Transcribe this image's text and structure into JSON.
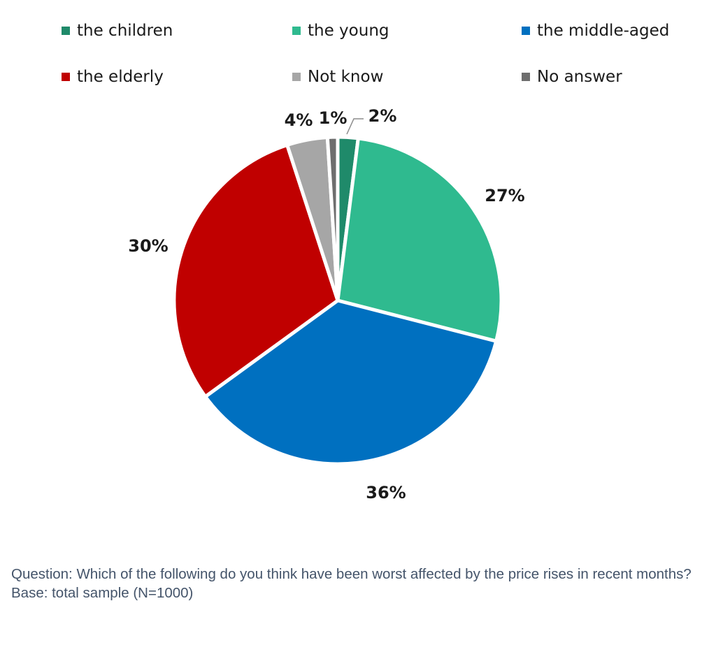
{
  "chart_data": {
    "type": "pie",
    "slices": [
      {
        "name": "the children",
        "value": 2,
        "label": "2%",
        "color": "#1f8a6a"
      },
      {
        "name": "the young",
        "value": 27,
        "label": "27%",
        "color": "#2fba8f"
      },
      {
        "name": "the middle-aged",
        "value": 36,
        "label": "36%",
        "color": "#0070c0"
      },
      {
        "name": "the elderly",
        "value": 30,
        "label": "30%",
        "color": "#c00000"
      },
      {
        "name": "Not know",
        "value": 4,
        "label": "4%",
        "color": "#a6a6a6"
      },
      {
        "name": "No answer",
        "value": 1,
        "label": "1%",
        "color": "#6e6e6e"
      }
    ],
    "legend_position": "top"
  },
  "footnote": {
    "question": "Question: Which of the following do you think have been worst affected by the price rises in recent months?",
    "base": "Base: total sample (N=1000)"
  }
}
